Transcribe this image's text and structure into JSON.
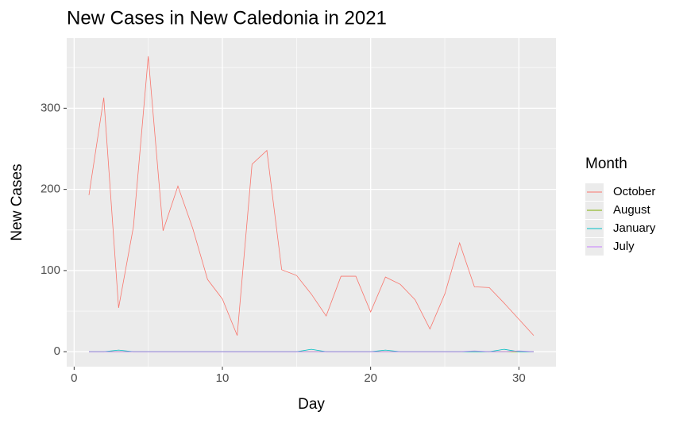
{
  "chart_data": {
    "type": "line",
    "title": "New Cases in New Caledonia in 2021",
    "x_label": "Day",
    "y_label": "New Cases",
    "legend_title": "Month",
    "x": [
      1,
      2,
      3,
      4,
      5,
      6,
      7,
      8,
      9,
      10,
      11,
      12,
      13,
      14,
      15,
      16,
      17,
      18,
      19,
      20,
      21,
      22,
      23,
      24,
      25,
      26,
      27,
      28,
      29,
      30,
      31
    ],
    "series": [
      {
        "name": "October",
        "color": "#F8766D",
        "values": [
          193,
          313,
          54,
          154,
          364,
          149,
          204,
          152,
          89,
          65,
          20,
          231,
          248,
          101,
          94,
          71,
          44,
          93,
          93,
          49,
          92,
          83,
          64,
          28,
          71,
          134,
          80,
          79,
          60,
          40,
          20
        ]
      },
      {
        "name": "August",
        "color": "#7CAE00",
        "values": [
          0,
          0,
          0,
          0,
          0,
          0,
          0,
          0,
          0,
          0,
          0,
          0,
          0,
          0,
          0,
          0,
          0,
          0,
          0,
          0,
          0,
          0,
          0,
          0,
          0,
          0,
          0,
          0,
          0,
          0,
          0
        ]
      },
      {
        "name": "January",
        "color": "#00BFC4",
        "values": [
          0,
          0,
          2,
          0,
          0,
          0,
          0,
          0,
          0,
          0,
          0,
          0,
          0,
          0,
          0,
          3,
          0,
          0,
          0,
          0,
          2,
          0,
          0,
          0,
          0,
          0,
          0,
          0,
          3,
          0,
          0
        ]
      },
      {
        "name": "July",
        "color": "#C77CFF",
        "values": [
          0,
          0,
          0,
          0,
          0,
          0,
          0,
          0,
          0,
          0,
          0,
          0,
          0,
          0,
          0,
          0,
          0,
          0,
          0,
          0,
          0,
          0,
          0,
          0,
          0,
          0,
          1,
          0,
          0,
          1,
          0
        ]
      }
    ],
    "xlim": [
      -0.5,
      32.5
    ],
    "xticks": [
      0,
      10,
      20,
      30
    ],
    "ylim": [
      -18.4,
      386.4
    ],
    "yticks": [
      0,
      100,
      200,
      300
    ],
    "grid": true,
    "legend": "right"
  }
}
